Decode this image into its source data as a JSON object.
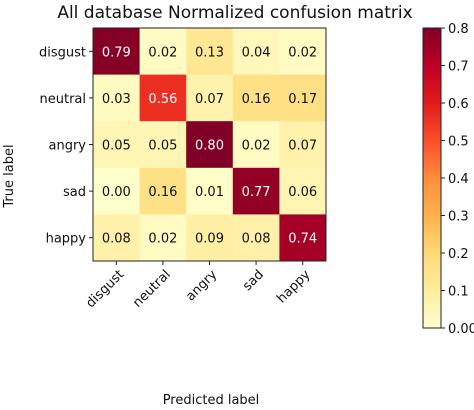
{
  "chart_data": {
    "type": "heatmap",
    "title": "All database Normalized confusion matrix",
    "xlabel": "Predicted label",
    "ylabel": "True label",
    "x_categories": [
      "disgust",
      "neutral",
      "angry",
      "sad",
      "happy"
    ],
    "y_categories": [
      "disgust",
      "neutral",
      "angry",
      "sad",
      "happy"
    ],
    "values": [
      [
        0.79,
        0.02,
        0.13,
        0.04,
        0.02
      ],
      [
        0.03,
        0.56,
        0.07,
        0.16,
        0.17
      ],
      [
        0.05,
        0.05,
        0.8,
        0.02,
        0.07
      ],
      [
        0.0,
        0.16,
        0.01,
        0.77,
        0.06
      ],
      [
        0.08,
        0.02,
        0.09,
        0.08,
        0.74
      ]
    ],
    "cell_labels": [
      [
        "0.79",
        "0.02",
        "0.13",
        "0.04",
        "0.02"
      ],
      [
        "0.03",
        "0.56",
        "0.07",
        "0.16",
        "0.17"
      ],
      [
        "0.05",
        "0.05",
        "0.80",
        "0.02",
        "0.07"
      ],
      [
        "0.00",
        "0.16",
        "0.01",
        "0.77",
        "0.06"
      ],
      [
        "0.08",
        "0.02",
        "0.09",
        "0.08",
        "0.74"
      ]
    ],
    "colormap": "YlOrRd",
    "colorbar": {
      "range": [
        0,
        0.8
      ],
      "ticks": [
        0.0,
        0.1,
        0.2,
        0.3,
        0.4,
        0.5,
        0.6,
        0.7,
        0.8
      ],
      "tick_labels": [
        "0.00",
        "0.1",
        "0.2",
        "0.3",
        "0.4",
        "0.5",
        "0.6",
        "0.7",
        "0.8"
      ]
    },
    "grid": false
  }
}
